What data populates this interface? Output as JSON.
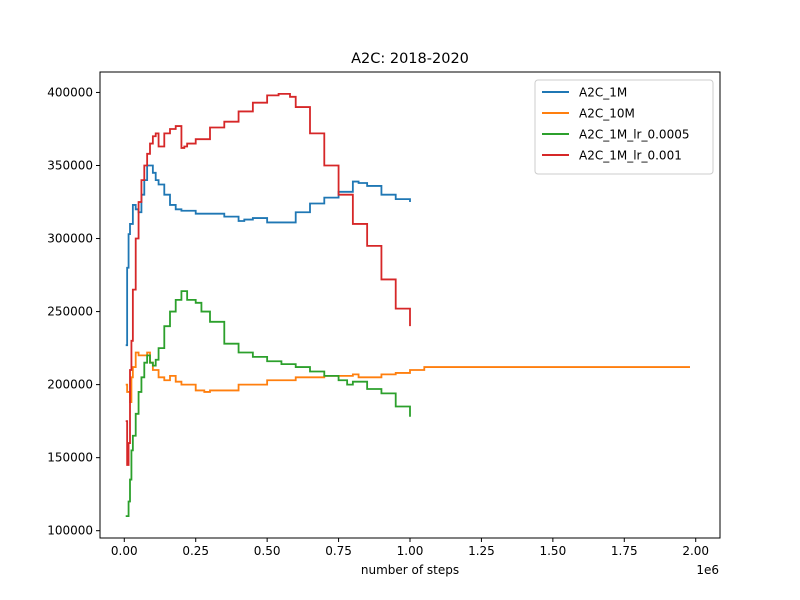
{
  "chart_data": {
    "type": "line",
    "title": "A2C: 2018-2020",
    "xlabel": "number of steps",
    "ylabel": "",
    "x_offset_label": "1e6",
    "xlim": [
      -85000,
      2085000
    ],
    "ylim": [
      95000,
      414000
    ],
    "x_ticks": [
      0,
      250000,
      500000,
      750000,
      1000000,
      1250000,
      1500000,
      1750000,
      2000000
    ],
    "x_tick_labels": [
      "0.00",
      "0.25",
      "0.50",
      "0.75",
      "1.00",
      "1.25",
      "1.50",
      "1.75",
      "2.00"
    ],
    "y_ticks": [
      100000,
      150000,
      200000,
      250000,
      300000,
      350000,
      400000
    ],
    "y_tick_labels": [
      "100000",
      "150000",
      "200000",
      "250000",
      "300000",
      "350000",
      "400000"
    ],
    "grid": false,
    "legend_position": "upper right",
    "series": [
      {
        "name": "A2C_1M",
        "color": "#1f77b4",
        "x": [
          5000,
          10000,
          15000,
          20000,
          30000,
          40000,
          50000,
          60000,
          70000,
          80000,
          90000,
          100000,
          110000,
          120000,
          140000,
          160000,
          180000,
          200000,
          250000,
          300000,
          350000,
          400000,
          420000,
          450000,
          500000,
          550000,
          600000,
          650000,
          700000,
          750000,
          800000,
          820000,
          850000,
          900000,
          950000,
          1000000
        ],
        "y": [
          227000,
          280000,
          303000,
          310000,
          323000,
          320000,
          318000,
          330000,
          340000,
          350000,
          350000,
          345000,
          340000,
          337000,
          330000,
          323000,
          320000,
          319000,
          317000,
          317000,
          315000,
          312000,
          313000,
          314000,
          311000,
          311000,
          318000,
          324000,
          328000,
          332000,
          339000,
          338000,
          336000,
          330000,
          327000,
          325000
        ]
      },
      {
        "name": "A2C_10M",
        "color": "#ff7f0e",
        "x": [
          5000,
          10000,
          20000,
          25000,
          30000,
          40000,
          50000,
          60000,
          70000,
          80000,
          90000,
          100000,
          120000,
          140000,
          160000,
          180000,
          200000,
          250000,
          280000,
          300000,
          400000,
          500000,
          600000,
          700000,
          780000,
          800000,
          820000,
          850000,
          900000,
          950000,
          1000000,
          1050000,
          1100000,
          1500000,
          1980000
        ],
        "y": [
          200000,
          195000,
          188000,
          205000,
          212000,
          222000,
          220000,
          220000,
          220000,
          222000,
          215000,
          210000,
          205000,
          203000,
          206000,
          202000,
          200000,
          196000,
          195000,
          196000,
          200000,
          203000,
          205000,
          206000,
          206000,
          207000,
          205000,
          205000,
          207000,
          208000,
          210000,
          212000,
          212000,
          212000,
          212000
        ]
      },
      {
        "name": "A2C_1M_lr_0.0005",
        "color": "#2ca02c",
        "x": [
          5000,
          15000,
          20000,
          25000,
          30000,
          40000,
          50000,
          60000,
          70000,
          80000,
          90000,
          100000,
          110000,
          120000,
          140000,
          160000,
          180000,
          200000,
          220000,
          250000,
          270000,
          300000,
          350000,
          400000,
          450000,
          500000,
          550000,
          600000,
          650000,
          700000,
          750000,
          780000,
          800000,
          850000,
          900000,
          950000,
          1000000
        ],
        "y": [
          110000,
          120000,
          135000,
          155000,
          165000,
          180000,
          195000,
          205000,
          215000,
          220000,
          215000,
          213000,
          217000,
          225000,
          240000,
          250000,
          258000,
          264000,
          258000,
          256000,
          250000,
          243000,
          228000,
          222000,
          219000,
          216000,
          214000,
          212000,
          209000,
          206000,
          203000,
          200000,
          202000,
          197000,
          194000,
          185000,
          178000
        ]
      },
      {
        "name": "A2C_1M_lr_0.001",
        "color": "#d62728",
        "x": [
          5000,
          10000,
          15000,
          20000,
          25000,
          30000,
          40000,
          50000,
          60000,
          70000,
          80000,
          90000,
          100000,
          110000,
          120000,
          140000,
          160000,
          180000,
          200000,
          210000,
          220000,
          250000,
          300000,
          350000,
          400000,
          450000,
          500000,
          520000,
          540000,
          560000,
          580000,
          600000,
          650000,
          700000,
          750000,
          800000,
          850000,
          900000,
          950000,
          1000000
        ],
        "y": [
          175000,
          145000,
          160000,
          210000,
          230000,
          265000,
          300000,
          325000,
          340000,
          350000,
          358000,
          365000,
          370000,
          372000,
          363000,
          372000,
          375000,
          377000,
          362000,
          363000,
          365000,
          368000,
          376000,
          380000,
          387000,
          393000,
          398000,
          398000,
          399000,
          399000,
          397000,
          390000,
          372000,
          350000,
          330000,
          310000,
          295000,
          272000,
          252000,
          240000
        ]
      }
    ]
  }
}
